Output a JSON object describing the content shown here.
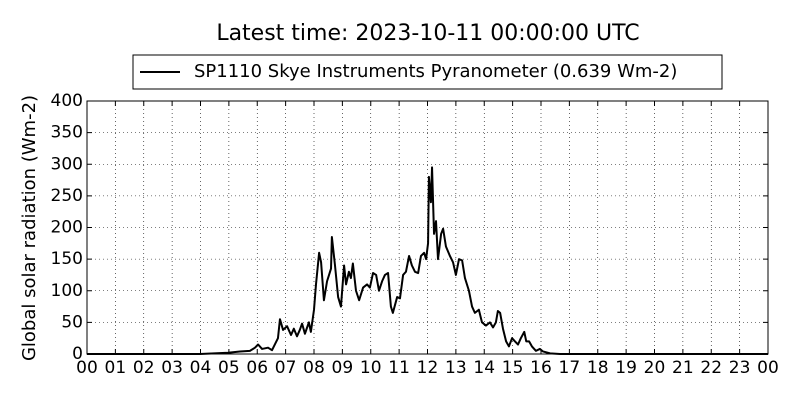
{
  "chart_data": {
    "type": "line",
    "title": "Latest time: 2023-10-11 00:00:00 UTC",
    "ylabel": "Global solar radiation (Wm-2)",
    "x": [
      0,
      3.98,
      4.97,
      5.39,
      5.74,
      5.92,
      6.03,
      6.17,
      6.38,
      6.52,
      6.73,
      6.8,
      6.91,
      7.05,
      7.19,
      7.29,
      7.4,
      7.5,
      7.58,
      7.68,
      7.82,
      7.89,
      8.0,
      8.07,
      8.18,
      8.25,
      8.35,
      8.46,
      8.53,
      8.6,
      8.63,
      8.74,
      8.85,
      8.95,
      9.06,
      9.13,
      9.23,
      9.3,
      9.37,
      9.48,
      9.59,
      9.73,
      9.87,
      9.97,
      10.08,
      10.19,
      10.29,
      10.4,
      10.5,
      10.61,
      10.71,
      10.78,
      10.93,
      11.03,
      11.14,
      11.24,
      11.35,
      11.45,
      11.56,
      11.67,
      11.77,
      11.88,
      11.95,
      12.02,
      12.05,
      12.12,
      12.16,
      12.23,
      12.3,
      12.37,
      12.48,
      12.55,
      12.65,
      12.79,
      12.9,
      13.0,
      13.11,
      13.22,
      13.32,
      13.46,
      13.57,
      13.67,
      13.81,
      13.92,
      14.06,
      14.2,
      14.31,
      14.41,
      14.48,
      14.56,
      14.66,
      14.77,
      14.87,
      14.98,
      15.08,
      15.19,
      15.29,
      15.41,
      15.48,
      15.58,
      15.68,
      15.82,
      15.96,
      16.07,
      16.32,
      16.67,
      24
    ],
    "series": [
      {
        "name": "SP1110 Skye Instruments Pyranometer (0.639 Wm-2)",
        "color": "#000000",
        "values": [
          0,
          0,
          2,
          4,
          5,
          10,
          15,
          8,
          10,
          6,
          25,
          55,
          38,
          44,
          30,
          40,
          28,
          38,
          48,
          32,
          50,
          35,
          70,
          110,
          160,
          145,
          85,
          115,
          125,
          135,
          185,
          140,
          90,
          75,
          140,
          110,
          130,
          120,
          143,
          100,
          85,
          105,
          110,
          105,
          128,
          125,
          100,
          115,
          125,
          128,
          75,
          65,
          90,
          88,
          125,
          130,
          155,
          140,
          130,
          128,
          155,
          160,
          150,
          175,
          280,
          240,
          295,
          190,
          210,
          150,
          190,
          198,
          170,
          155,
          145,
          125,
          150,
          148,
          120,
          100,
          75,
          65,
          70,
          50,
          45,
          50,
          42,
          50,
          68,
          65,
          40,
          20,
          12,
          25,
          20,
          15,
          25,
          35,
          20,
          20,
          12,
          5,
          8,
          4,
          1,
          0,
          0
        ]
      }
    ],
    "xlim": [
      0,
      24
    ],
    "xticks": [
      {
        "value": 0,
        "label": "00"
      },
      {
        "value": 1,
        "label": "01"
      },
      {
        "value": 2,
        "label": "02"
      },
      {
        "value": 3,
        "label": "03"
      },
      {
        "value": 4,
        "label": "04"
      },
      {
        "value": 5,
        "label": "05"
      },
      {
        "value": 6,
        "label": "06"
      },
      {
        "value": 7,
        "label": "07"
      },
      {
        "value": 8,
        "label": "08"
      },
      {
        "value": 9,
        "label": "09"
      },
      10,
      11,
      12,
      13,
      14,
      15,
      16,
      17,
      18,
      19,
      20,
      21,
      22,
      23,
      {
        "value": 24,
        "label": "00"
      }
    ],
    "ylim": [
      0,
      400
    ],
    "yticks": [
      0,
      50,
      100,
      150,
      200,
      250,
      300,
      350,
      400
    ],
    "grid": true,
    "legend": "top"
  }
}
